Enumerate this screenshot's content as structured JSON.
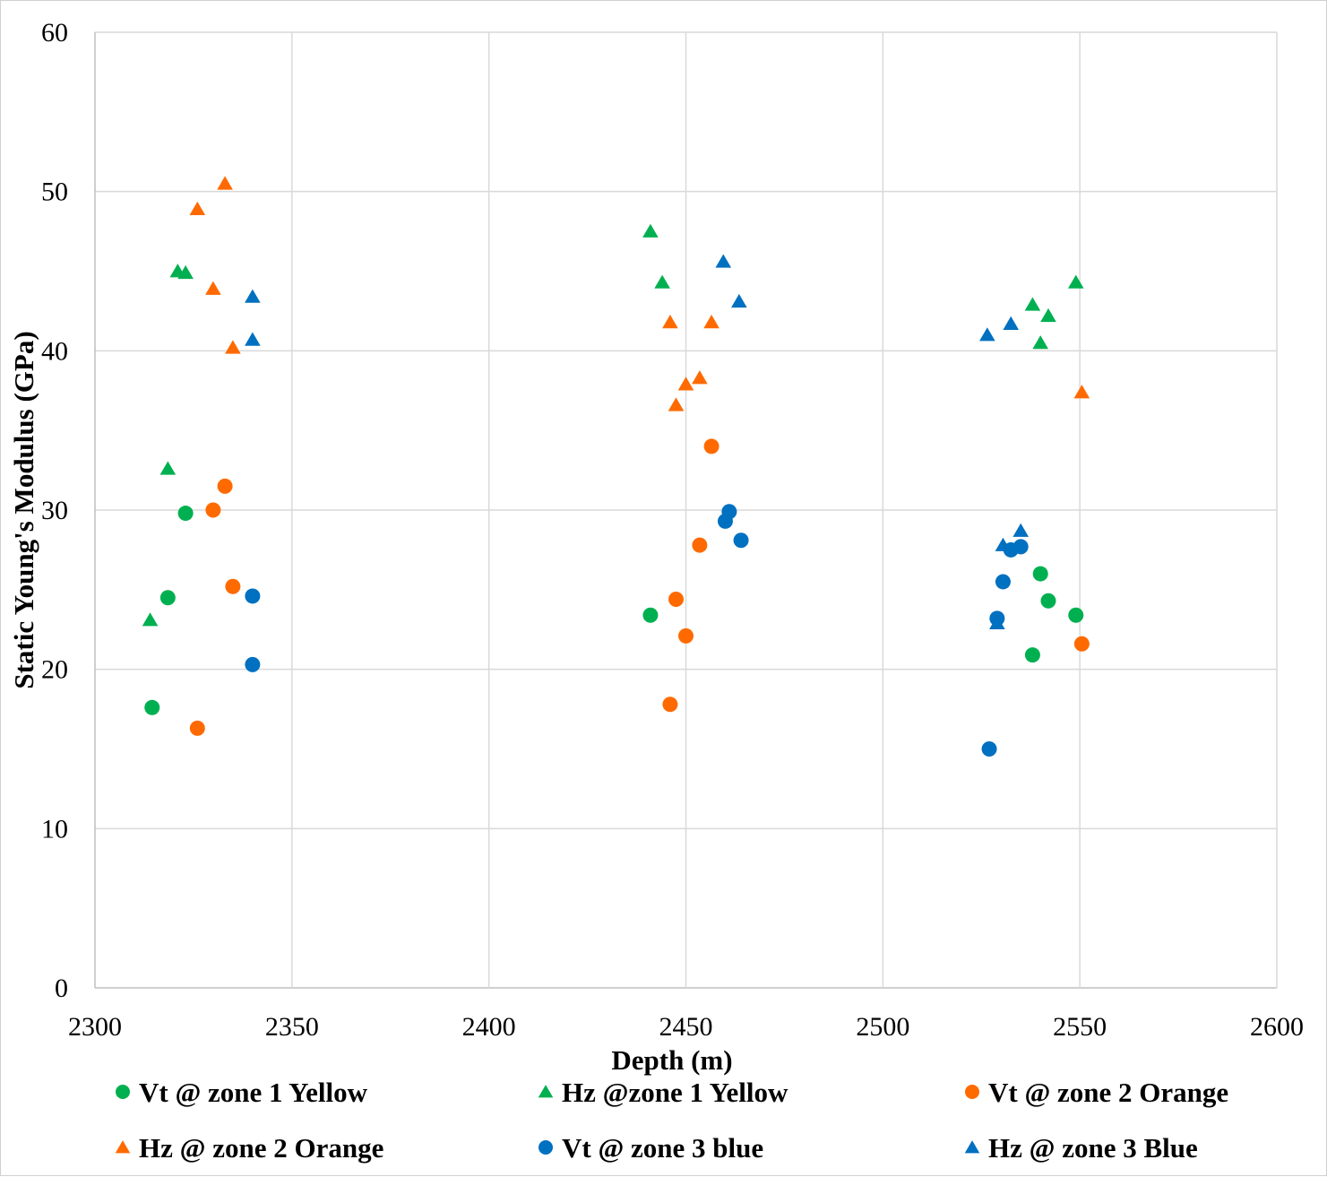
{
  "colors": {
    "green": "#00b050",
    "orange": "#ff6a00",
    "blue": "#0070c0",
    "grid": "#d9d9d9",
    "axis": "#bfbfbf"
  },
  "chart_data": {
    "type": "scatter",
    "title": "",
    "xlabel": "Depth (m)",
    "ylabel": "Static Young's Modulus (GPa)",
    "xlim": [
      2300,
      2600
    ],
    "ylim": [
      0,
      60
    ],
    "xticks": [
      2300,
      2350,
      2400,
      2450,
      2500,
      2550,
      2600
    ],
    "yticks": [
      0,
      10,
      20,
      30,
      40,
      50,
      60
    ],
    "grid": true,
    "legend_position": "bottom",
    "series": [
      {
        "name": "Vt @ zone 1 Yellow",
        "marker": "circle",
        "color": "#00b050",
        "points": [
          [
            2314.5,
            17.6
          ],
          [
            2318.5,
            24.5
          ],
          [
            2323.0,
            29.8
          ],
          [
            2441.0,
            23.4
          ],
          [
            2538.0,
            20.9
          ],
          [
            2540.0,
            26.0
          ],
          [
            2542.0,
            24.3
          ],
          [
            2549.0,
            23.4
          ]
        ]
      },
      {
        "name": "Hz @zone 1 Yellow",
        "marker": "triangle",
        "color": "#00b050",
        "points": [
          [
            2314.0,
            23.1
          ],
          [
            2318.5,
            32.6
          ],
          [
            2321.0,
            45.0
          ],
          [
            2323.0,
            44.9
          ],
          [
            2441.0,
            47.5
          ],
          [
            2444.0,
            44.3
          ],
          [
            2538.0,
            42.9
          ],
          [
            2540.0,
            40.5
          ],
          [
            2542.0,
            42.2
          ],
          [
            2549.0,
            44.3
          ]
        ]
      },
      {
        "name": "Vt @ zone 2 Orange",
        "marker": "circle",
        "color": "#ff6a00",
        "points": [
          [
            2326.0,
            16.3
          ],
          [
            2330.0,
            30.0
          ],
          [
            2333.0,
            31.5
          ],
          [
            2335.0,
            25.2
          ],
          [
            2446.0,
            17.8
          ],
          [
            2447.5,
            24.4
          ],
          [
            2450.0,
            22.1
          ],
          [
            2453.5,
            27.8
          ],
          [
            2456.5,
            34.0
          ],
          [
            2550.5,
            21.6
          ]
        ]
      },
      {
        "name": "Hz @ zone 2 Orange",
        "marker": "triangle",
        "color": "#ff6a00",
        "points": [
          [
            2326.0,
            48.9
          ],
          [
            2330.0,
            43.9
          ],
          [
            2333.0,
            50.5
          ],
          [
            2335.0,
            40.2
          ],
          [
            2446.0,
            41.8
          ],
          [
            2447.5,
            36.6
          ],
          [
            2450.0,
            37.9
          ],
          [
            2453.5,
            38.3
          ],
          [
            2456.5,
            41.8
          ],
          [
            2550.5,
            37.4
          ]
        ]
      },
      {
        "name": "Vt @ zone 3 blue",
        "marker": "circle",
        "color": "#0070c0",
        "points": [
          [
            2340.0,
            24.6
          ],
          [
            2340.0,
            20.3
          ],
          [
            2460.0,
            29.3
          ],
          [
            2461.0,
            29.9
          ],
          [
            2464.0,
            28.1
          ],
          [
            2527.0,
            15.0
          ],
          [
            2529.0,
            23.2
          ],
          [
            2530.5,
            25.5
          ],
          [
            2532.5,
            27.5
          ],
          [
            2535.0,
            27.7
          ]
        ]
      },
      {
        "name": "Hz @ zone 3 Blue",
        "marker": "triangle",
        "color": "#0070c0",
        "points": [
          [
            2340.0,
            43.4
          ],
          [
            2340.0,
            40.7
          ],
          [
            2459.5,
            45.6
          ],
          [
            2463.5,
            43.1
          ],
          [
            2526.5,
            41.0
          ],
          [
            2529.0,
            22.9
          ],
          [
            2530.5,
            27.8
          ],
          [
            2532.5,
            41.7
          ],
          [
            2535.0,
            28.7
          ]
        ]
      }
    ]
  }
}
